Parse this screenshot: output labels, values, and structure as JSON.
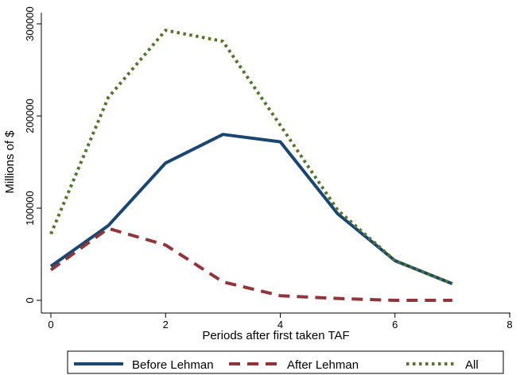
{
  "chart_data": {
    "type": "line",
    "title": "",
    "xlabel": "Periods after first taken TAF",
    "ylabel": "Millions of $",
    "xlim": [
      0,
      8
    ],
    "ylim": [
      0,
      300000
    ],
    "xticks": [
      0,
      2,
      4,
      6,
      8
    ],
    "xtick_labels": [
      "0",
      "2",
      "4",
      "6",
      "8"
    ],
    "yticks": [
      0,
      100000,
      200000,
      300000
    ],
    "ytick_labels": [
      "0",
      "100000",
      "200000",
      "300000"
    ],
    "grid": false,
    "legend_position": "bottom",
    "x": [
      0,
      1,
      2,
      3,
      4,
      5,
      6,
      7
    ],
    "series": [
      {
        "name": "Before Lehman",
        "color": "#1a476f",
        "dash": "solid",
        "values": [
          37000,
          81000,
          149000,
          180000,
          172000,
          94000,
          43000,
          18000
        ]
      },
      {
        "name": "After Lehman",
        "color": "#90353b",
        "dash": "dash",
        "values": [
          33000,
          78000,
          60000,
          20000,
          5000,
          2000,
          0,
          0
        ]
      },
      {
        "name": "All",
        "color": "#55752f",
        "dash": "dot",
        "values": [
          72000,
          220000,
          293000,
          281000,
          190000,
          98000,
          43000,
          18000
        ]
      }
    ]
  }
}
